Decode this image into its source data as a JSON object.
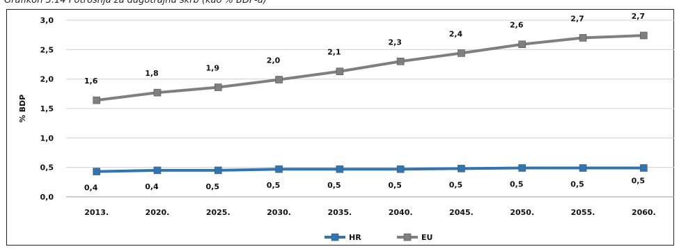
{
  "caption": "Grafikon 3.14 Potrošnja za dugotrajnu skrb (kao % BDP-a)",
  "chart_data": {
    "type": "line",
    "title": "",
    "ylabel": "% BDP",
    "xlabel": "",
    "categories": [
      "2013.",
      "2020.",
      "2025.",
      "2030.",
      "2035.",
      "2040.",
      "2045.",
      "2050.",
      "2055.",
      "2060."
    ],
    "ylim": [
      0,
      3.0
    ],
    "yticks": [
      "0,0",
      "0,5",
      "1,0",
      "1,5",
      "2,0",
      "2,5",
      "3,0"
    ],
    "grid": true,
    "legend_position": "bottom",
    "series": [
      {
        "name": "HR",
        "color": "#2e75b6",
        "values": [
          0.43,
          0.45,
          0.45,
          0.47,
          0.47,
          0.47,
          0.48,
          0.49,
          0.49,
          0.49
        ],
        "labels": [
          "0,4",
          "0,4",
          "0,5",
          "0,5",
          "0,5",
          "0,5",
          "0,5",
          "0,5",
          "0,5",
          "0,5"
        ]
      },
      {
        "name": "EU",
        "color": "#7f7f7f",
        "values": [
          1.64,
          1.77,
          1.86,
          1.99,
          2.13,
          2.3,
          2.44,
          2.59,
          2.7,
          2.74
        ],
        "labels": [
          "1,6",
          "1,8",
          "1,9",
          "2,0",
          "2,1",
          "2,3",
          "2,4",
          "2,6",
          "2,7",
          "2,7"
        ]
      }
    ]
  }
}
